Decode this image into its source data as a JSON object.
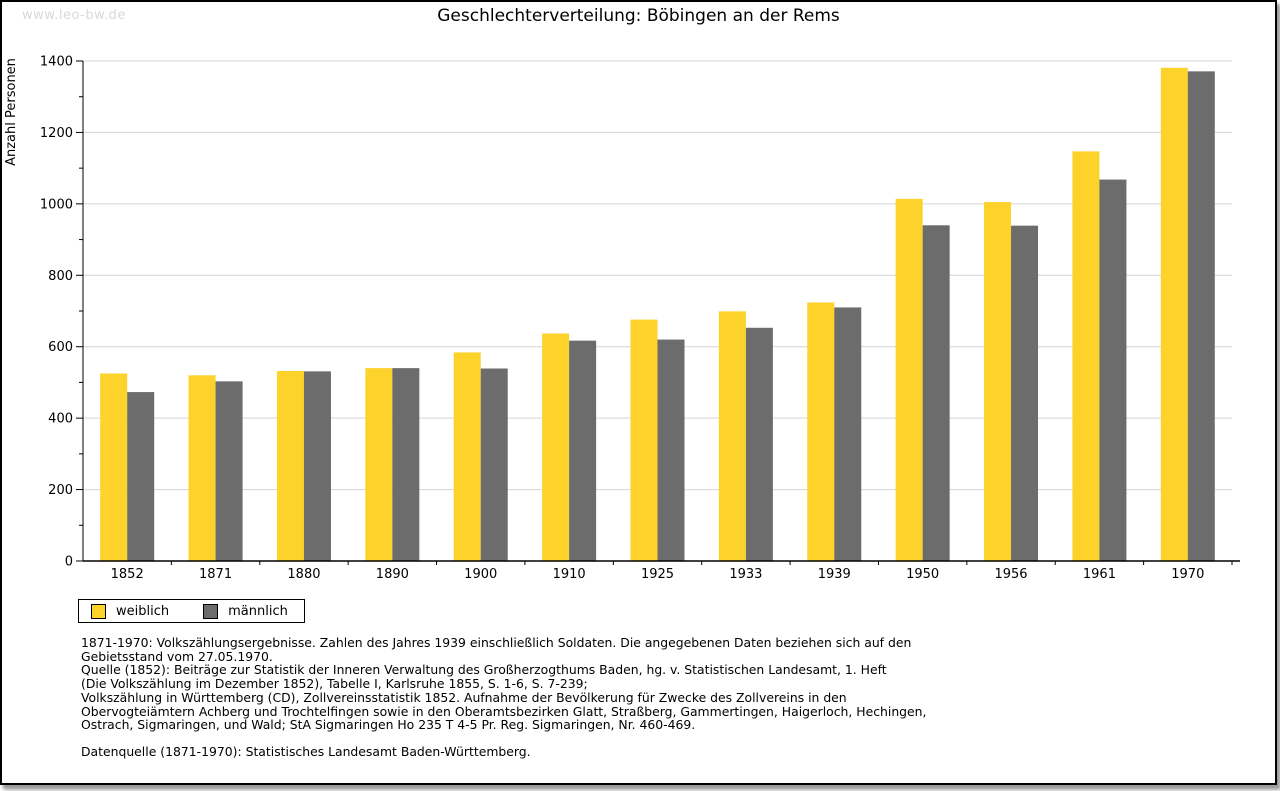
{
  "watermark": "www.leo-bw.de",
  "header": {
    "title": "Geschlechterverteilung: Böbingen an der Rems"
  },
  "chart_data": {
    "type": "bar",
    "title": "Geschlechterverteilung: Böbingen an der Rems",
    "xlabel": "",
    "ylabel": "Anzahl Personen",
    "ylim": [
      0,
      1400
    ],
    "ytick_step": 200,
    "yminor_step": 100,
    "grid": true,
    "legend_position": "bottom-left",
    "categories": [
      "1852",
      "1871",
      "1880",
      "1890",
      "1900",
      "1910",
      "1925",
      "1933",
      "1939",
      "1950",
      "1956",
      "1961",
      "1970"
    ],
    "series": [
      {
        "name": "weiblich",
        "color": "#FCD22B",
        "values": [
          525,
          520,
          532,
          540,
          584,
          637,
          676,
          699,
          724,
          1014,
          1005,
          1147,
          1381
        ]
      },
      {
        "name": "männlich",
        "color": "#6C6C6C",
        "values": [
          473,
          503,
          531,
          540,
          539,
          617,
          620,
          653,
          710,
          940,
          939,
          1068,
          1371
        ]
      }
    ]
  },
  "colors": {
    "grid": "#d4d4d4",
    "axis": "#000000",
    "watermark": "#d9d9d9",
    "background": "#ffffff"
  },
  "footnotes": {
    "lines": [
      "1871-1970: Volkszählungsergebnisse. Zahlen des Jahres 1939 einschließlich Soldaten. Die angegebenen Daten beziehen sich auf den",
      "Gebietsstand vom 27.05.1970.",
      "Quelle (1852): Beiträge zur Statistik der Inneren Verwaltung des Großherzogthums Baden, hg. v. Statistischen Landesamt, 1. Heft",
      "(Die Volkszählung im Dezember 1852), Tabelle I, Karlsruhe 1855, S. 1-6, S. 7-239;",
      "Volkszählung in Württemberg (CD), Zollvereinsstatistik 1852. Aufnahme der Bevölkerung für Zwecke des Zollvereins in den",
      "Obervogteiämtern Achberg und Trochtelfingen sowie in den Oberamtsbezirken Glatt, Straßberg, Gammertingen, Haigerloch, Hechingen,",
      "Ostrach, Sigmaringen, und Wald; StA Sigmaringen Ho 235 T 4-5 Pr. Reg. Sigmaringen, Nr. 460-469."
    ],
    "datasource": "Datenquelle (1871-1970): Statistisches Landesamt Baden-Württemberg."
  }
}
